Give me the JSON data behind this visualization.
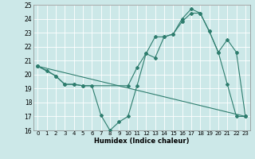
{
  "xlabel": "Humidex (Indice chaleur)",
  "xlim": [
    -0.5,
    23.5
  ],
  "ylim": [
    16,
    25
  ],
  "yticks": [
    16,
    17,
    18,
    19,
    20,
    21,
    22,
    23,
    24,
    25
  ],
  "xticks": [
    0,
    1,
    2,
    3,
    4,
    5,
    6,
    7,
    8,
    9,
    10,
    11,
    12,
    13,
    14,
    15,
    16,
    17,
    18,
    19,
    20,
    21,
    22,
    23
  ],
  "bg_color": "#cce8e8",
  "grid_color": "#b0d8d8",
  "line_color": "#2e7d6e",
  "line1_x": [
    0,
    1,
    2,
    3,
    4,
    5,
    6,
    7,
    8,
    9,
    10,
    11,
    12,
    13,
    14,
    15,
    16,
    17,
    18,
    19,
    20,
    21,
    22,
    23
  ],
  "line1_y": [
    20.6,
    20.3,
    19.9,
    19.3,
    19.3,
    19.2,
    19.2,
    17.1,
    16.0,
    16.6,
    17.0,
    19.2,
    21.5,
    21.2,
    22.7,
    22.9,
    24.0,
    24.7,
    24.4,
    23.1,
    21.6,
    19.3,
    17.0,
    17.0
  ],
  "line2_x": [
    0,
    2,
    3,
    4,
    5,
    10,
    11,
    12,
    13,
    14,
    15,
    16,
    17,
    18,
    19,
    20,
    21,
    22,
    23
  ],
  "line2_y": [
    20.6,
    19.9,
    19.3,
    19.3,
    19.2,
    19.2,
    20.5,
    21.5,
    22.7,
    22.7,
    22.9,
    23.8,
    24.4,
    24.4,
    23.1,
    21.6,
    22.5,
    21.6,
    17.0
  ],
  "line3_x": [
    0,
    23
  ],
  "line3_y": [
    20.6,
    17.0
  ]
}
